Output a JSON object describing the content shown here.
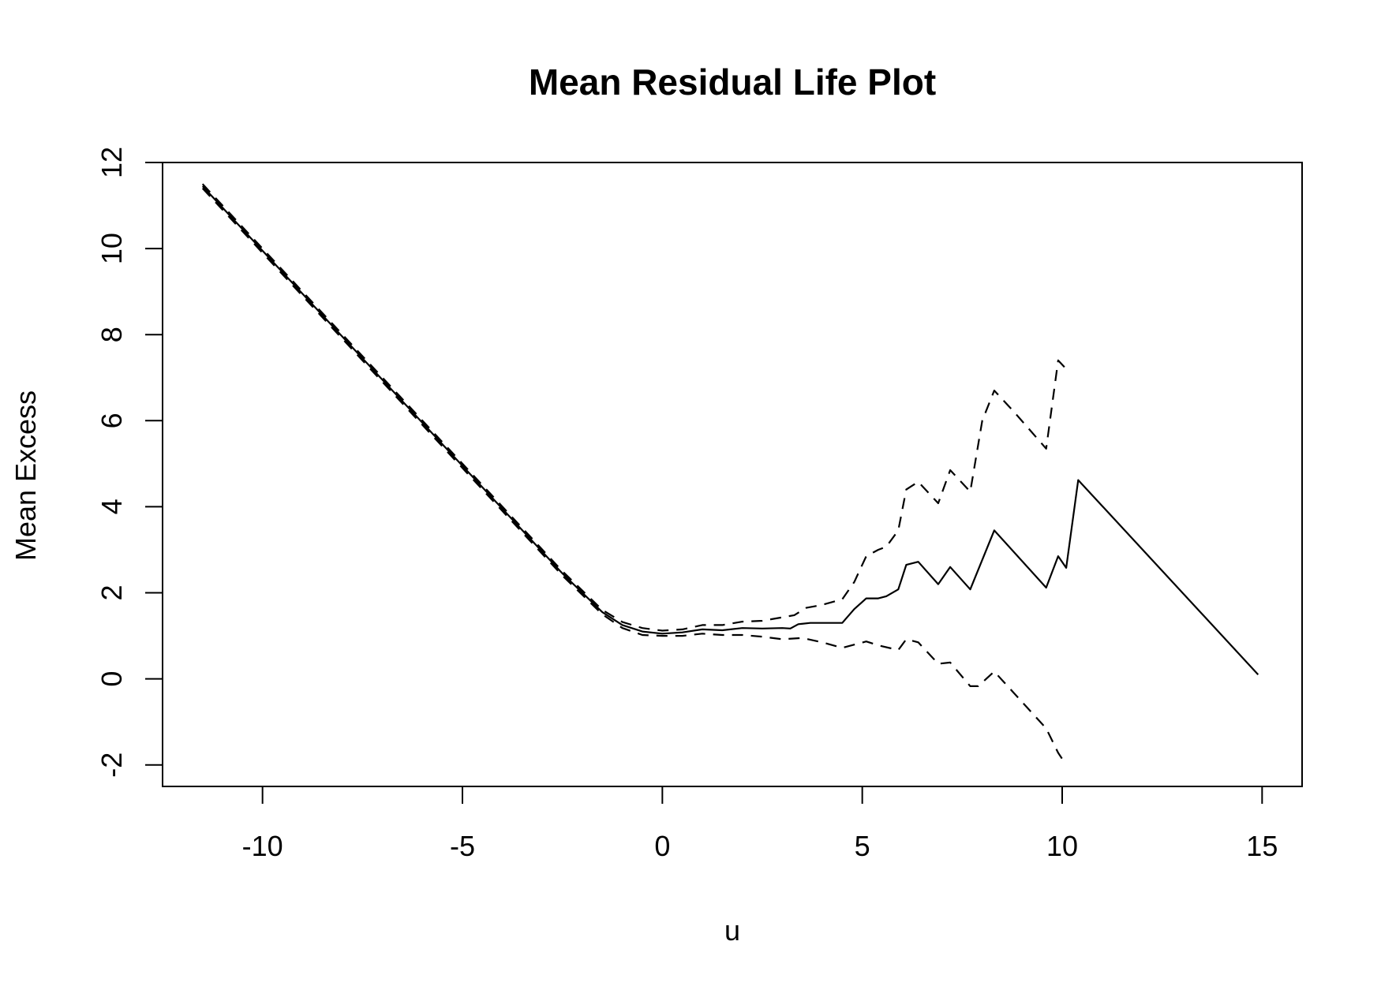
{
  "chart_data": {
    "type": "line",
    "title": "Mean Residual Life Plot",
    "xlabel": "u",
    "ylabel": "Mean Excess",
    "xlim": [
      -12.5,
      16
    ],
    "ylim": [
      -2.5,
      12
    ],
    "x_ticks": [
      -10,
      -5,
      0,
      5,
      10,
      15
    ],
    "y_ticks": [
      -2,
      0,
      2,
      4,
      6,
      8,
      10,
      12
    ],
    "grid": false,
    "legend": "none",
    "series": [
      {
        "style": "solid",
        "color": "#000000",
        "points": [
          [
            -11.5,
            11.45
          ],
          [
            -9,
            8.95
          ],
          [
            -6.5,
            6.45
          ],
          [
            -4,
            3.95
          ],
          [
            -2.5,
            2.45
          ],
          [
            -1.5,
            1.55
          ],
          [
            -1,
            1.25
          ],
          [
            -0.5,
            1.1
          ],
          [
            0,
            1.05
          ],
          [
            0.5,
            1.08
          ],
          [
            1,
            1.15
          ],
          [
            1.5,
            1.13
          ],
          [
            2,
            1.18
          ],
          [
            2.5,
            1.17
          ],
          [
            3,
            1.18
          ],
          [
            3.2,
            1.17
          ],
          [
            3.4,
            1.27
          ],
          [
            3.7,
            1.3
          ],
          [
            4,
            1.3
          ],
          [
            4.5,
            1.3
          ],
          [
            4.8,
            1.62
          ],
          [
            5.1,
            1.87
          ],
          [
            5.4,
            1.87
          ],
          [
            5.6,
            1.92
          ],
          [
            5.9,
            2.08
          ],
          [
            6.1,
            2.65
          ],
          [
            6.4,
            2.72
          ],
          [
            6.9,
            2.2
          ],
          [
            7.2,
            2.6
          ],
          [
            7.7,
            2.08
          ],
          [
            8.3,
            3.45
          ],
          [
            9.6,
            2.12
          ],
          [
            9.9,
            2.85
          ],
          [
            10.1,
            2.58
          ],
          [
            10.4,
            4.62
          ],
          [
            14.9,
            0.1
          ]
        ]
      },
      {
        "style": "dashed",
        "color": "#000000",
        "points": [
          [
            -11.5,
            11.5
          ],
          [
            -9,
            9.0
          ],
          [
            -6.5,
            6.5
          ],
          [
            -4,
            4.0
          ],
          [
            -2.5,
            2.5
          ],
          [
            -1.5,
            1.6
          ],
          [
            -1,
            1.32
          ],
          [
            -0.5,
            1.18
          ],
          [
            0,
            1.12
          ],
          [
            0.5,
            1.15
          ],
          [
            1,
            1.25
          ],
          [
            1.5,
            1.25
          ],
          [
            2,
            1.33
          ],
          [
            2.5,
            1.35
          ],
          [
            3,
            1.43
          ],
          [
            3.3,
            1.48
          ],
          [
            3.6,
            1.65
          ],
          [
            4,
            1.72
          ],
          [
            4.5,
            1.85
          ],
          [
            4.8,
            2.25
          ],
          [
            5.1,
            2.85
          ],
          [
            5.4,
            3.0
          ],
          [
            5.6,
            3.07
          ],
          [
            5.9,
            3.45
          ],
          [
            6.1,
            4.4
          ],
          [
            6.4,
            4.58
          ],
          [
            6.9,
            4.08
          ],
          [
            7.2,
            4.85
          ],
          [
            7.7,
            4.35
          ],
          [
            8,
            6.0
          ],
          [
            8.3,
            6.7
          ],
          [
            8.8,
            6.2
          ],
          [
            9.6,
            5.35
          ],
          [
            9.9,
            7.4
          ],
          [
            10.1,
            7.2
          ]
        ]
      },
      {
        "style": "dashed",
        "color": "#000000",
        "points": [
          [
            -11.5,
            11.4
          ],
          [
            -9,
            8.9
          ],
          [
            -6.5,
            6.4
          ],
          [
            -4,
            3.9
          ],
          [
            -2.5,
            2.4
          ],
          [
            -1.5,
            1.5
          ],
          [
            -1,
            1.18
          ],
          [
            -0.5,
            1.02
          ],
          [
            0,
            1.0
          ],
          [
            0.5,
            1.0
          ],
          [
            1,
            1.05
          ],
          [
            1.5,
            1.02
          ],
          [
            2,
            1.02
          ],
          [
            2.5,
            0.98
          ],
          [
            3,
            0.92
          ],
          [
            3.5,
            0.95
          ],
          [
            4,
            0.85
          ],
          [
            4.5,
            0.72
          ],
          [
            5.1,
            0.87
          ],
          [
            5.4,
            0.78
          ],
          [
            5.9,
            0.67
          ],
          [
            6.1,
            0.92
          ],
          [
            6.4,
            0.85
          ],
          [
            6.9,
            0.35
          ],
          [
            7.2,
            0.38
          ],
          [
            7.7,
            -0.17
          ],
          [
            7.9,
            -0.17
          ],
          [
            8.3,
            0.17
          ],
          [
            9.6,
            -1.15
          ],
          [
            9.9,
            -1.72
          ],
          [
            10.1,
            -2.0
          ]
        ]
      }
    ]
  }
}
